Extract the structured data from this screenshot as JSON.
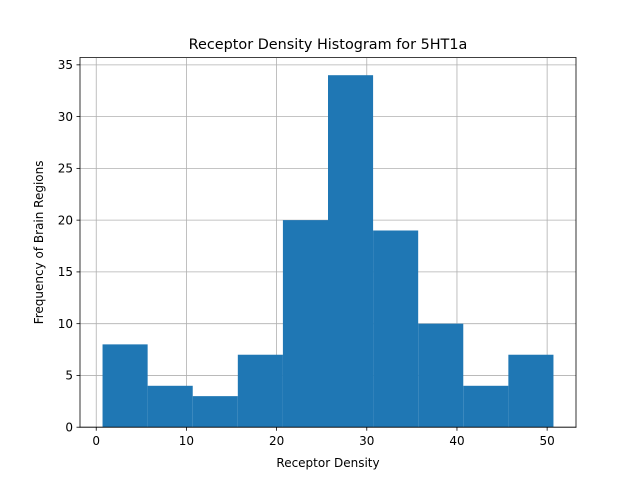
{
  "chart_data": {
    "type": "bar",
    "title": "Receptor Density Histogram for 5HT1a",
    "xlabel": "Receptor Density",
    "ylabel": "Frequency of Brain Regions",
    "bins": [
      {
        "x_start": 0.7,
        "x_end": 5.7,
        "value": 8
      },
      {
        "x_start": 5.7,
        "x_end": 10.7,
        "value": 4
      },
      {
        "x_start": 10.7,
        "x_end": 15.7,
        "value": 3
      },
      {
        "x_start": 15.7,
        "x_end": 20.7,
        "value": 7
      },
      {
        "x_start": 20.7,
        "x_end": 25.7,
        "value": 20
      },
      {
        "x_start": 25.7,
        "x_end": 30.7,
        "value": 34
      },
      {
        "x_start": 30.7,
        "x_end": 35.7,
        "value": 19
      },
      {
        "x_start": 35.7,
        "x_end": 40.7,
        "value": 10
      },
      {
        "x_start": 40.7,
        "x_end": 45.7,
        "value": 4
      },
      {
        "x_start": 45.7,
        "x_end": 50.7,
        "value": 7
      }
    ],
    "xlim": [
      -1.8,
      53.2
    ],
    "ylim": [
      0,
      35.7
    ],
    "x_ticks": [
      0,
      10,
      20,
      30,
      40,
      50
    ],
    "y_ticks": [
      0,
      5,
      10,
      15,
      20,
      25,
      30,
      35
    ],
    "grid": true,
    "colors": {
      "bar": "#1f77b4",
      "grid": "#b0b0b0",
      "axis": "#000000"
    }
  }
}
